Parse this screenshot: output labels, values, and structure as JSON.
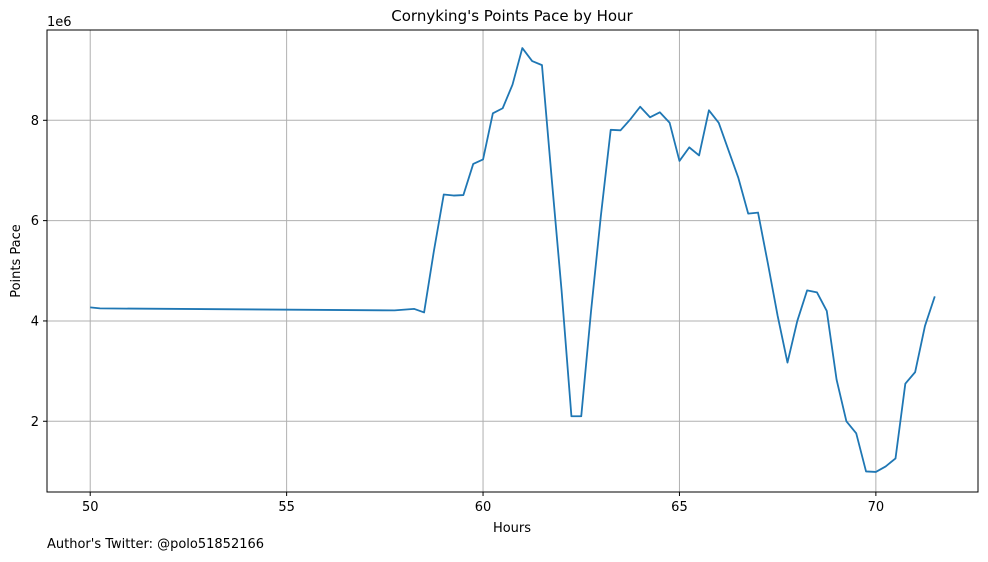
{
  "chart_data": {
    "type": "line",
    "title": "Cornyking's Points Pace by Hour",
    "xlabel": "Hours",
    "ylabel": "Points Pace",
    "y_scale_label": "1e6",
    "xlim": [
      48.9,
      72.6
    ],
    "ylim": [
      0.59,
      9.8
    ],
    "x_ticks": [
      50,
      55,
      60,
      65,
      70
    ],
    "x_tick_labels": [
      "50",
      "55",
      "60",
      "65",
      "70"
    ],
    "y_ticks": [
      2,
      4,
      6,
      8
    ],
    "y_tick_labels": [
      "2",
      "4",
      "6",
      "8"
    ],
    "grid": true,
    "legend": "none",
    "series": [
      {
        "color": "#1f77b4",
        "x": [
          50.0,
          50.25,
          57.75,
          58.25,
          58.5,
          58.75,
          59.0,
          59.25,
          59.5,
          59.75,
          60.0,
          60.25,
          60.5,
          60.75,
          61.0,
          61.25,
          61.5,
          61.75,
          62.0,
          62.25,
          62.5,
          62.75,
          63.0,
          63.25,
          63.5,
          63.75,
          64.0,
          64.25,
          64.5,
          64.75,
          65.0,
          65.25,
          65.5,
          65.75,
          66.0,
          66.25,
          66.5,
          66.75,
          67.0,
          67.25,
          67.5,
          67.75,
          68.0,
          68.25,
          68.5,
          68.75,
          69.0,
          69.25,
          69.5,
          69.75,
          70.0,
          70.25,
          70.5,
          70.75,
          71.0,
          71.25,
          71.5
        ],
        "y": [
          4.27,
          4.25,
          4.21,
          4.24,
          4.17,
          5.4,
          6.52,
          6.5,
          6.51,
          7.13,
          7.22,
          8.14,
          8.24,
          8.71,
          9.44,
          9.18,
          9.1,
          6.82,
          4.6,
          2.1,
          2.1,
          4.2,
          6.1,
          7.81,
          7.8,
          8.02,
          8.27,
          8.06,
          8.16,
          7.95,
          7.19,
          7.46,
          7.3,
          8.2,
          7.95,
          7.4,
          6.85,
          6.14,
          6.16,
          5.15,
          4.1,
          3.17,
          4.0,
          4.61,
          4.57,
          4.2,
          2.83,
          2.0,
          1.76,
          1.0,
          0.99,
          1.1,
          1.26,
          2.75,
          2.98,
          3.9,
          4.49
        ]
      }
    ]
  },
  "footer": {
    "text": "Author's Twitter: @polo51852166"
  }
}
